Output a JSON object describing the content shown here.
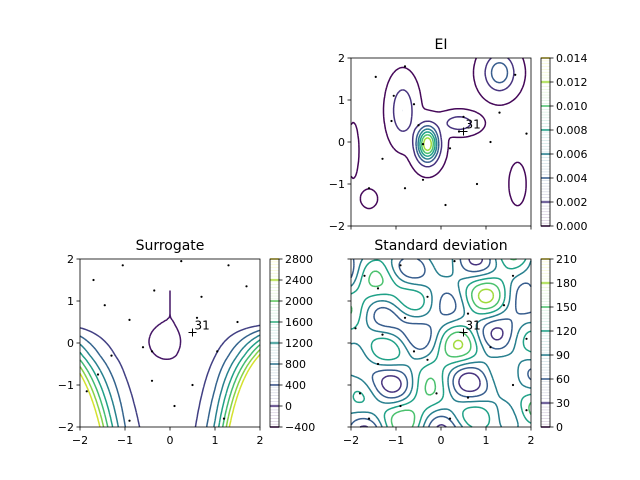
{
  "chart_data": [
    {
      "type": "contour",
      "title": "EI",
      "xlim": [
        -2,
        2
      ],
      "ylim": [
        -2,
        2
      ],
      "show_xticklabels": false,
      "yticks": [
        "2",
        "1",
        "0",
        "−1",
        "−2"
      ],
      "colorbar": {
        "range": [
          0.0,
          0.014
        ],
        "ticks": [
          "0.014",
          "0.012",
          "0.010",
          "0.008",
          "0.006",
          "0.004",
          "0.002",
          "0.000"
        ]
      },
      "marker": {
        "x": 0.5,
        "y": 0.25,
        "label": "31"
      },
      "samples": [
        [
          -1.45,
          1.55
        ],
        [
          -1.05,
          1.1
        ],
        [
          -0.8,
          1.8
        ],
        [
          -1.1,
          0.5
        ],
        [
          -0.6,
          0.9
        ],
        [
          0.5,
          0.6
        ],
        [
          0.4,
          0.25
        ],
        [
          0.2,
          -0.15
        ],
        [
          -0.4,
          -0.05
        ],
        [
          -1.3,
          -0.4
        ],
        [
          -1.6,
          -1.1
        ],
        [
          -0.4,
          -0.9
        ],
        [
          0.1,
          -1.5
        ],
        [
          0.8,
          -1.0
        ],
        [
          1.1,
          0.0
        ],
        [
          1.3,
          0.7
        ],
        [
          1.65,
          1.6
        ],
        [
          1.9,
          0.2
        ],
        [
          -0.8,
          -1.1
        ],
        [
          -0.5,
          0.4
        ]
      ]
    },
    {
      "type": "contour",
      "title": "Surrogate",
      "xlim": [
        -2,
        2
      ],
      "ylim": [
        -2,
        2
      ],
      "xticks": [
        "−2",
        "−1",
        "0",
        "1",
        "2"
      ],
      "yticks": [
        "2",
        "1",
        "0",
        "−1",
        "−2"
      ],
      "colorbar": {
        "range": [
          -400,
          2800
        ],
        "ticks": [
          "2800",
          "2400",
          "2000",
          "1600",
          "1200",
          "800",
          "400",
          "0",
          "−400"
        ]
      },
      "marker": {
        "x": 0.5,
        "y": 0.25,
        "label": "31"
      },
      "samples": [
        [
          -1.7,
          1.5
        ],
        [
          -1.05,
          1.85
        ],
        [
          0.25,
          1.95
        ],
        [
          1.3,
          1.85
        ],
        [
          -1.45,
          0.9
        ],
        [
          -0.35,
          1.25
        ],
        [
          0.7,
          1.1
        ],
        [
          1.7,
          1.35
        ],
        [
          -0.9,
          0.55
        ],
        [
          0.6,
          0.6
        ],
        [
          1.5,
          0.5
        ],
        [
          -0.6,
          -0.1
        ],
        [
          -0.4,
          -0.2
        ],
        [
          1.05,
          -0.2
        ],
        [
          -1.3,
          -0.3
        ],
        [
          -0.4,
          -0.9
        ],
        [
          0.5,
          -1.0
        ],
        [
          -1.85,
          -1.15
        ],
        [
          -0.9,
          -1.85
        ],
        [
          0.1,
          -1.5
        ],
        [
          1.2,
          -1.8
        ],
        [
          -1.6,
          -0.75
        ]
      ]
    },
    {
      "type": "contour",
      "title": "Standard deviation",
      "xlim": [
        -2,
        2
      ],
      "ylim": [
        -2,
        2
      ],
      "xticks": [
        "−2",
        "−1",
        "0",
        "1",
        "2"
      ],
      "yticks": [],
      "colorbar": {
        "range": [
          0,
          210
        ],
        "ticks": [
          "210",
          "180",
          "150",
          "120",
          "90",
          "60",
          "30",
          "0"
        ]
      },
      "marker": {
        "x": 0.5,
        "y": 0.25,
        "label": "31"
      },
      "samples": [
        [
          -1.7,
          1.6
        ],
        [
          -1.4,
          1.3
        ],
        [
          -0.9,
          1.85
        ],
        [
          0.3,
          1.95
        ],
        [
          1.6,
          1.6
        ],
        [
          -1.9,
          0.35
        ],
        [
          -1.3,
          0.2
        ],
        [
          -0.8,
          0.6
        ],
        [
          -0.3,
          1.1
        ],
        [
          0.6,
          0.7
        ],
        [
          1.4,
          0.9
        ],
        [
          1.9,
          0.1
        ],
        [
          -1.4,
          -0.5
        ],
        [
          -0.6,
          -0.2
        ],
        [
          -0.3,
          -0.4
        ],
        [
          1.1,
          -0.1
        ],
        [
          -1.8,
          -1.2
        ],
        [
          -0.9,
          -1.5
        ],
        [
          -0.1,
          -1.2
        ],
        [
          0.6,
          -1.3
        ],
        [
          1.6,
          -1.0
        ],
        [
          1.9,
          -1.6
        ],
        [
          -1.6,
          -1.8
        ],
        [
          0.2,
          -1.8
        ]
      ]
    }
  ]
}
